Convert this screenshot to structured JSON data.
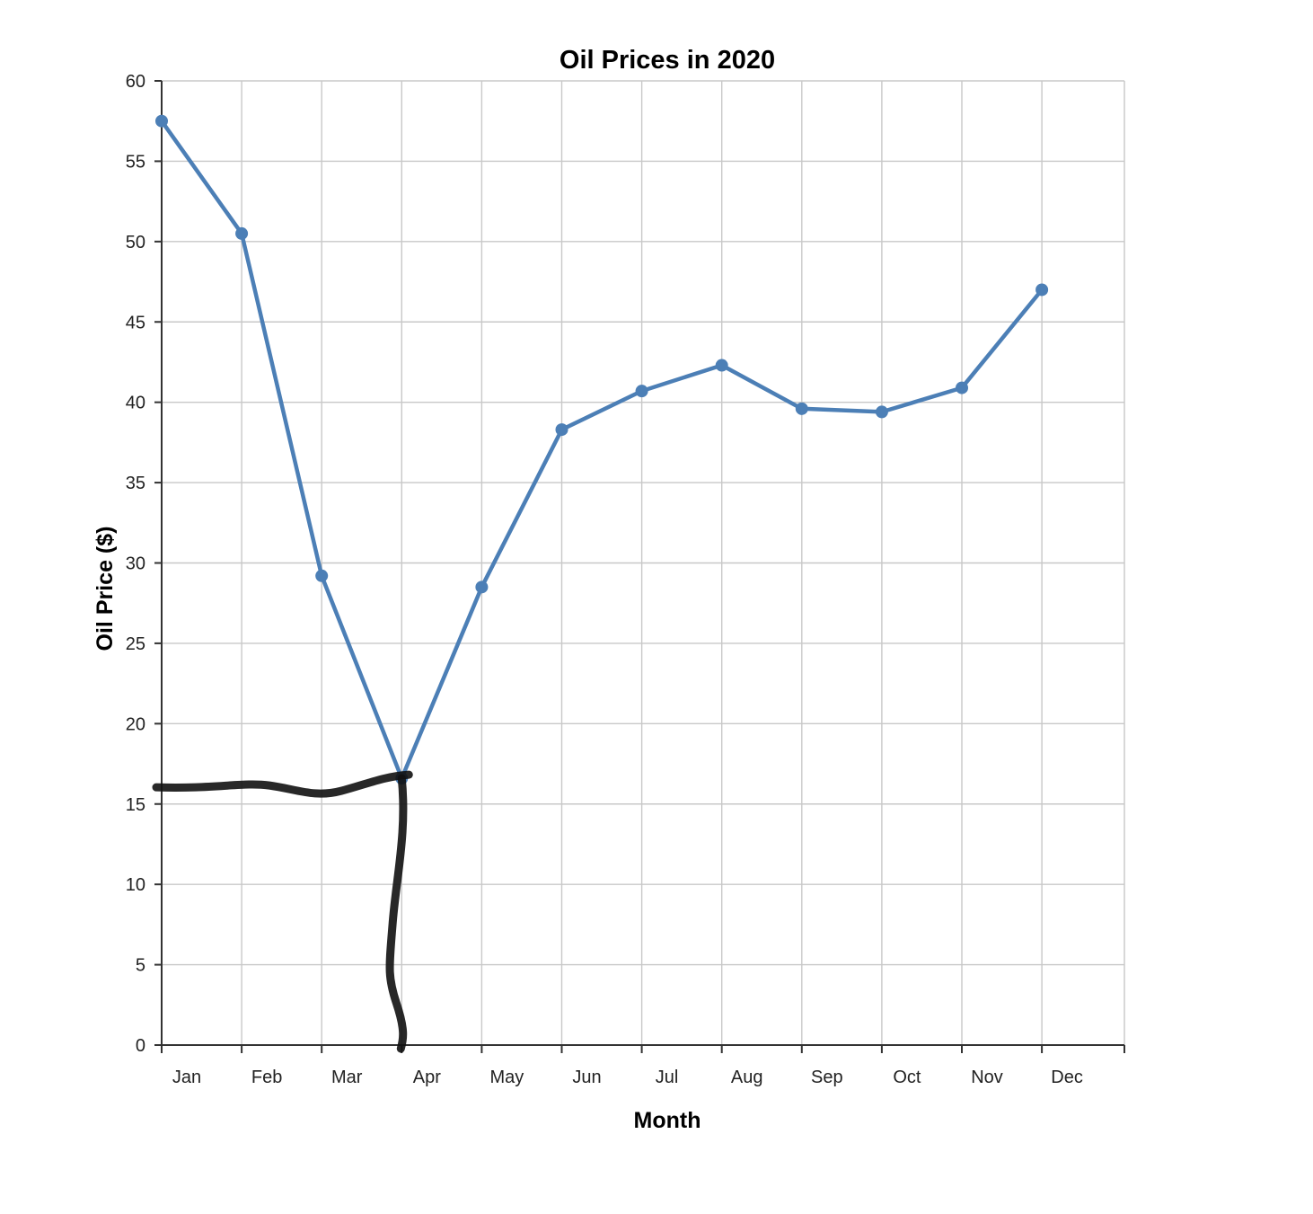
{
  "chart_data": {
    "type": "line",
    "title": "Oil Prices in 2020",
    "xlabel": "Month",
    "ylabel": "Oil Price ($)",
    "categories": [
      "Jan",
      "Feb",
      "Mar",
      "Apr",
      "May",
      "Jun",
      "Jul",
      "Aug",
      "Sep",
      "Oct",
      "Nov",
      "Dec"
    ],
    "values": [
      57.5,
      50.5,
      29.2,
      16.6,
      28.5,
      38.3,
      40.7,
      42.3,
      39.6,
      39.4,
      40.9,
      47.0
    ],
    "ylim": [
      0,
      60
    ],
    "yticks": [
      "0",
      "5",
      "10",
      "15",
      "20",
      "25",
      "30",
      "35",
      "40",
      "45",
      "50",
      "55",
      "60"
    ],
    "grid": true,
    "series_color": "#4c7fb6",
    "annotation": "hand-drawn black marks tracing the Apr minimum to both axes"
  }
}
